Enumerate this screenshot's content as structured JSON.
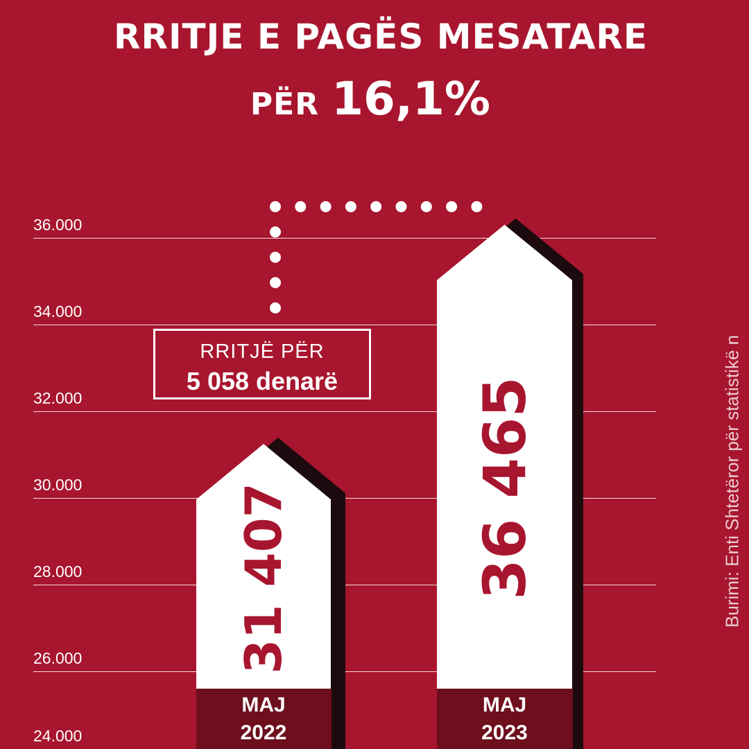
{
  "title": {
    "line1": "RRITJE E PAGËS MESATARE",
    "per": "PËR",
    "percent": "16,1%"
  },
  "callout": {
    "line1": "RRITJË PËR",
    "line2": "5 058 denarë"
  },
  "source": "Burimi: Enti Shtetëror për statistikë n",
  "chart_data": {
    "type": "bar",
    "categories": [
      [
        "MAJ",
        "2022"
      ],
      [
        "MAJ",
        "2023"
      ]
    ],
    "values": [
      31407,
      36465
    ],
    "value_labels": [
      "31 407",
      "36 465"
    ],
    "ylim": [
      24000,
      36000
    ],
    "yticks": [
      24000,
      26000,
      28000,
      30000,
      32000,
      34000,
      36000
    ],
    "ytick_labels": [
      "24.000",
      "26.000",
      "28.000",
      "30.000",
      "32.000",
      "34.000",
      "36.000"
    ],
    "grid": true,
    "colors": {
      "background": "#a8152e",
      "bar": "#ffffff",
      "bar_shadow": "#1c0a0e",
      "label_band": "#6d0f1d",
      "value_text": "#a8152e"
    }
  }
}
